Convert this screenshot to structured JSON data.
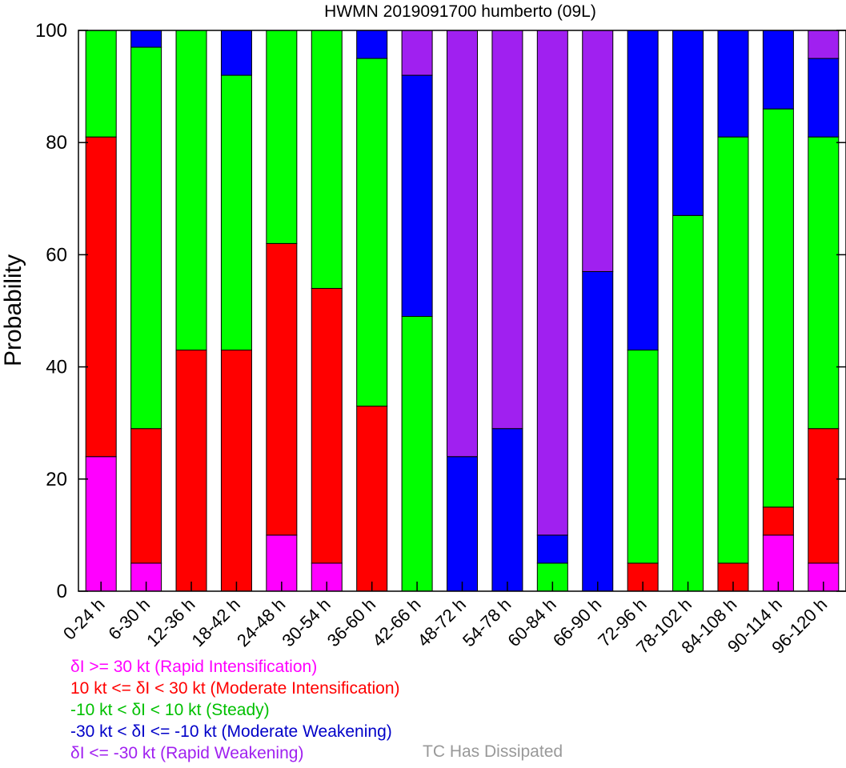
{
  "chart_data": {
    "type": "bar",
    "stacked": true,
    "title": "HWMN 2019091700 humberto (09L)",
    "xlabel": "",
    "ylabel": "Probability",
    "ylim": [
      0,
      100
    ],
    "yticks": [
      0,
      20,
      40,
      60,
      80,
      100
    ],
    "categories": [
      "0-24 h",
      "6-30 h",
      "12-36 h",
      "18-42 h",
      "24-48 h",
      "30-54 h",
      "36-60 h",
      "42-66 h",
      "48-72 h",
      "54-78 h",
      "60-84 h",
      "66-90 h",
      "72-96 h",
      "78-102 h",
      "84-108 h",
      "90-114 h",
      "96-120 h"
    ],
    "series": [
      {
        "name": "Rapid Intensification",
        "color": "#ff00ff",
        "values": [
          24,
          5,
          0,
          0,
          10,
          5,
          0,
          0,
          0,
          0,
          0,
          0,
          0,
          0,
          0,
          10,
          5
        ]
      },
      {
        "name": "Moderate Intensification",
        "color": "#ff0000",
        "values": [
          57,
          24,
          43,
          43,
          52,
          49,
          33,
          0,
          0,
          0,
          0,
          0,
          5,
          0,
          5,
          5,
          24
        ]
      },
      {
        "name": "Steady",
        "color": "#00ff00",
        "values": [
          19,
          68,
          57,
          49,
          38,
          46,
          62,
          49,
          0,
          0,
          5,
          0,
          38,
          67,
          76,
          71,
          52
        ]
      },
      {
        "name": "Moderate Weakening",
        "color": "#0000ff",
        "values": [
          0,
          3,
          0,
          8,
          0,
          0,
          5,
          43,
          24,
          29,
          5,
          57,
          57,
          33,
          19,
          14,
          14
        ]
      },
      {
        "name": "Rapid Weakening",
        "color": "#a020f0",
        "values": [
          0,
          0,
          0,
          0,
          0,
          0,
          0,
          8,
          76,
          71,
          90,
          43,
          0,
          0,
          0,
          0,
          5
        ]
      }
    ],
    "legend": [
      {
        "text": "δI >= 30 kt (Rapid Intensification)",
        "color": "#ff00ff"
      },
      {
        "text": "10 kt <= δI < 30 kt (Moderate Intensification)",
        "color": "#ff0000"
      },
      {
        "text": "-10 kt < δI < 10 kt (Steady)",
        "color": "#00c000"
      },
      {
        "text": "-30 kt < δI <= -10 kt (Moderate Weakening)",
        "color": "#0000c8"
      },
      {
        "text": "δI <= -30 kt (Rapid Weakening)",
        "color": "#a020f0"
      }
    ],
    "dissipated_label": {
      "text": "TC Has Dissipated",
      "color": "#999999"
    }
  }
}
